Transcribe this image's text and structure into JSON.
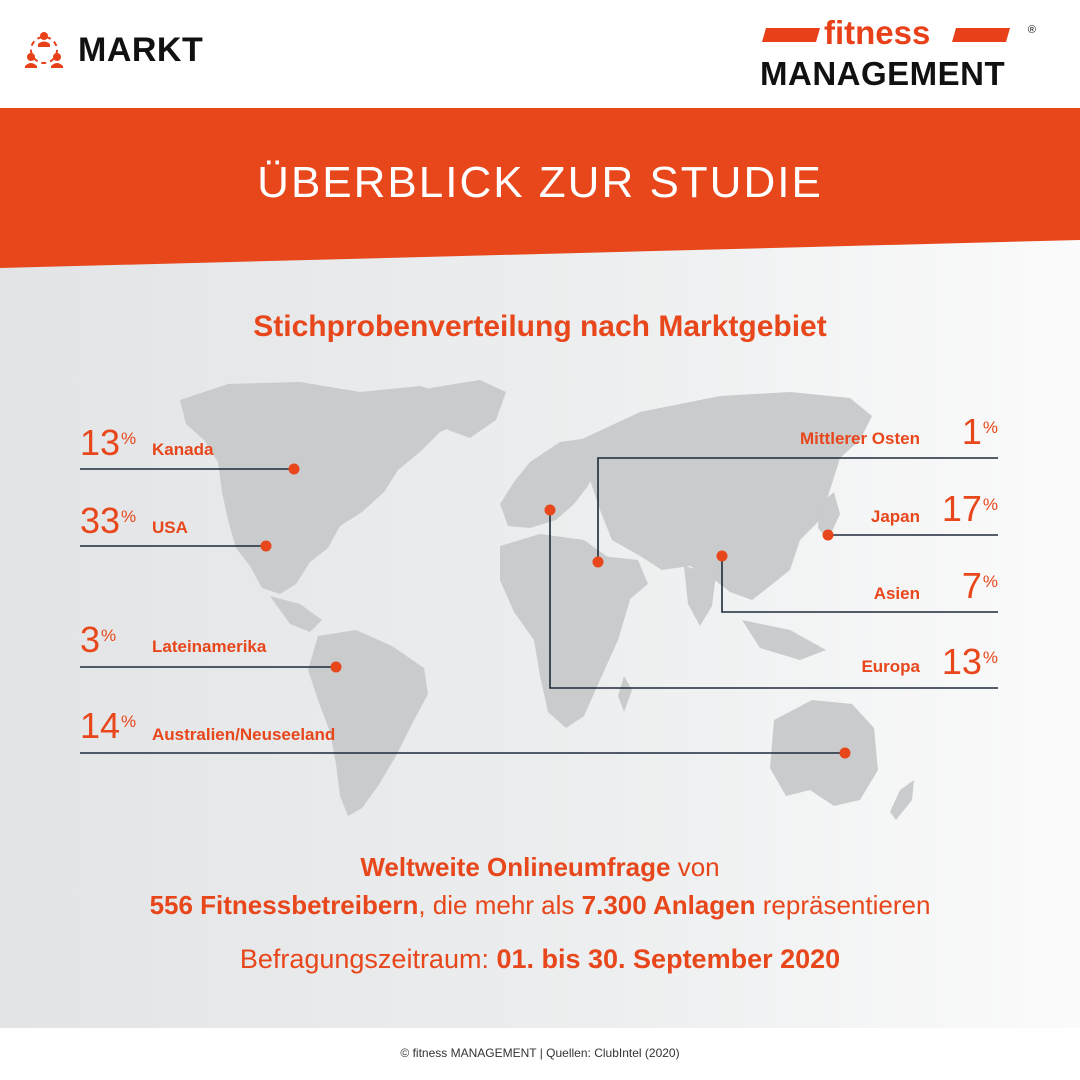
{
  "header": {
    "section_label": "MARKT",
    "section_icon": "people-network-icon",
    "logo_top": "fitness",
    "logo_bottom": "MANAGEMENT",
    "logo_reg": "®"
  },
  "banner": {
    "title": "ÜBERBLICK ZUR STUDIE"
  },
  "map_section": {
    "subtitle": "Stichprobenverteilung nach Marktgebiet",
    "percent_sign": "%",
    "regions": [
      {
        "name": "Kanada",
        "value": "13"
      },
      {
        "name": "USA",
        "value": "33"
      },
      {
        "name": "Lateinamerika",
        "value": "3"
      },
      {
        "name": "Australien/Neuseeland",
        "value": "14"
      },
      {
        "name": "Mittlerer Osten",
        "value": "1"
      },
      {
        "name": "Japan",
        "value": "17"
      },
      {
        "name": "Asien",
        "value": "7"
      },
      {
        "name": "Europa",
        "value": "13"
      }
    ]
  },
  "summary": {
    "line1_bold": "Weltweite Onlineumfrage",
    "line1_rest": " von",
    "line2_bold_a": "556 Fitnessbetreibern",
    "line2_mid": ", die mehr als ",
    "line2_bold_b": "7.300 Anlagen",
    "line2_rest": " repräsentieren",
    "period_label": "Befragungszeitraum: ",
    "period_value": "01. bis 30. September 2020"
  },
  "footer": {
    "text": "© fitness MANAGEMENT | Quellen: ClubIntel (2020)"
  },
  "colors": {
    "accent": "#e8461b",
    "map": "#c9cbcd",
    "line": "#1e2a3a"
  }
}
